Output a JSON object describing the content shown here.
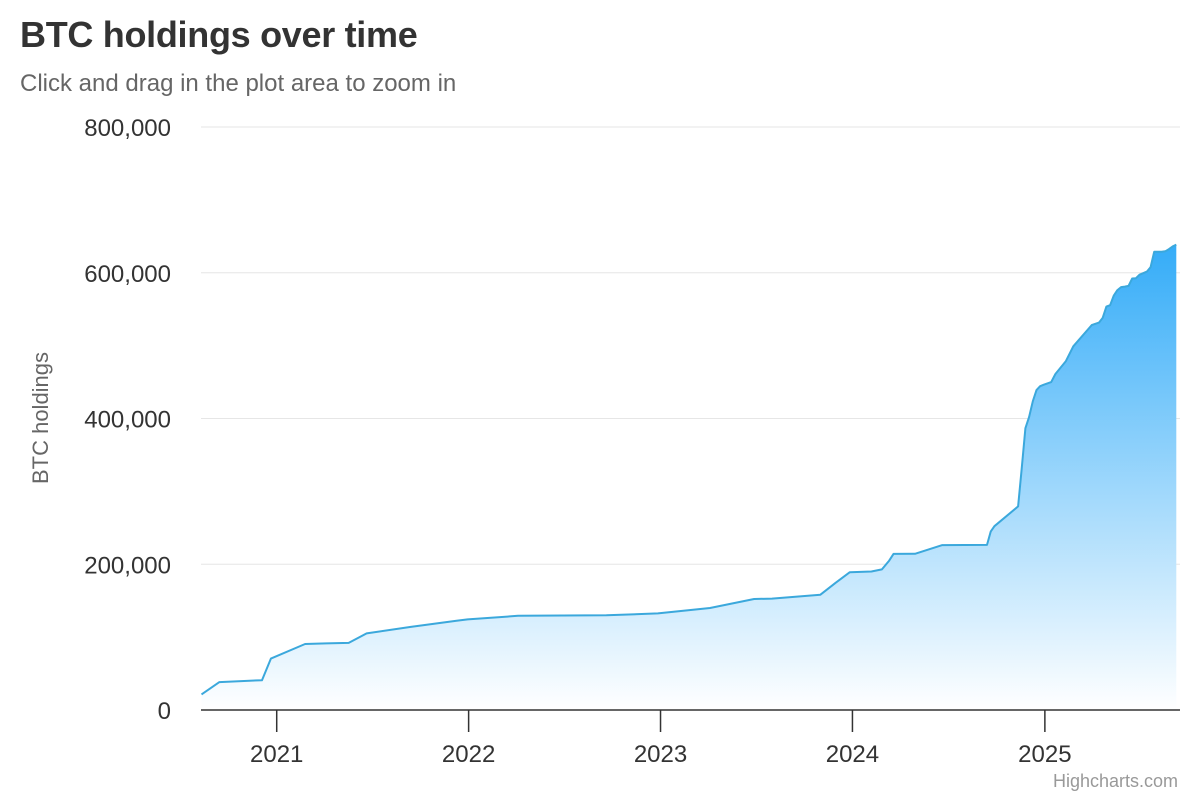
{
  "chart_data": {
    "type": "area",
    "title": "BTC holdings over time",
    "subtitle": "Click and drag in the plot area to zoom in",
    "ylabel": "BTC holdings",
    "xlabel": "",
    "xlim": [
      "2020-08-10",
      "2025-09-15"
    ],
    "ylim": [
      0,
      800000
    ],
    "x_ticks": [
      "2021-01-01",
      "2022-01-01",
      "2023-01-01",
      "2024-01-01",
      "2025-01-01"
    ],
    "x_tick_labels": [
      "2021",
      "2022",
      "2023",
      "2024",
      "2025"
    ],
    "y_ticks": [
      0,
      200000,
      400000,
      600000,
      800000
    ],
    "y_tick_labels": [
      "0",
      "200,000",
      "400,000",
      "600,000",
      "800,000"
    ],
    "grid": "horizontal",
    "legend": "none",
    "colors": {
      "line": "#3ba8dc",
      "fill_top": "#34acf8",
      "fill_bottom": "#ffffff",
      "grid": "#e6e6e6",
      "axis": "#333333"
    },
    "series": [
      {
        "points": [
          [
            "2020-08-11",
            21454
          ],
          [
            "2020-09-14",
            38250
          ],
          [
            "2020-12-04",
            40824
          ],
          [
            "2020-12-21",
            70470
          ],
          [
            "2021-02-24",
            90531
          ],
          [
            "2021-04-05",
            91326
          ],
          [
            "2021-05-18",
            92079
          ],
          [
            "2021-06-21",
            105085
          ],
          [
            "2021-09-13",
            114042
          ],
          [
            "2021-12-09",
            122478
          ],
          [
            "2021-12-30",
            124391
          ],
          [
            "2022-04-05",
            129218
          ],
          [
            "2022-06-29",
            129699
          ],
          [
            "2022-09-20",
            130000
          ],
          [
            "2022-12-27",
            132500
          ],
          [
            "2023-04-05",
            140000
          ],
          [
            "2023-06-28",
            152333
          ],
          [
            "2023-08-01",
            152800
          ],
          [
            "2023-11-01",
            158245
          ],
          [
            "2023-11-30",
            174530
          ],
          [
            "2023-12-27",
            189150
          ],
          [
            "2024-02-06",
            190000
          ],
          [
            "2024-02-26",
            193000
          ],
          [
            "2024-03-11",
            205000
          ],
          [
            "2024-03-19",
            214246
          ],
          [
            "2024-04-29",
            214400
          ],
          [
            "2024-06-20",
            226331
          ],
          [
            "2024-09-13",
            226500
          ],
          [
            "2024-09-20",
            244800
          ],
          [
            "2024-09-27",
            252220
          ],
          [
            "2024-11-11",
            279420
          ],
          [
            "2024-11-18",
            331200
          ],
          [
            "2024-11-25",
            386700
          ],
          [
            "2024-12-02",
            402100
          ],
          [
            "2024-12-09",
            423650
          ],
          [
            "2024-12-16",
            439000
          ],
          [
            "2024-12-23",
            444262
          ],
          [
            "2024-12-30",
            446400
          ],
          [
            "2025-01-13",
            450000
          ],
          [
            "2025-01-21",
            461000
          ],
          [
            "2025-02-10",
            478740
          ],
          [
            "2025-02-24",
            499096
          ],
          [
            "2025-03-31",
            528185
          ],
          [
            "2025-04-14",
            531644
          ],
          [
            "2025-04-21",
            538200
          ],
          [
            "2025-04-28",
            553555
          ],
          [
            "2025-05-05",
            555450
          ],
          [
            "2025-05-12",
            568840
          ],
          [
            "2025-05-19",
            576230
          ],
          [
            "2025-05-26",
            580250
          ],
          [
            "2025-06-02",
            580955
          ],
          [
            "2025-06-09",
            582000
          ],
          [
            "2025-06-16",
            592100
          ],
          [
            "2025-06-23",
            592345
          ],
          [
            "2025-06-30",
            597325
          ],
          [
            "2025-07-14",
            601550
          ],
          [
            "2025-07-21",
            607770
          ],
          [
            "2025-07-28",
            628791
          ],
          [
            "2025-08-04",
            628791
          ],
          [
            "2025-08-11",
            628946
          ],
          [
            "2025-08-18",
            629376
          ],
          [
            "2025-08-25",
            632457
          ],
          [
            "2025-09-02",
            636505
          ],
          [
            "2025-09-08",
            638460
          ]
        ]
      }
    ]
  },
  "credits": "Highcharts.com"
}
